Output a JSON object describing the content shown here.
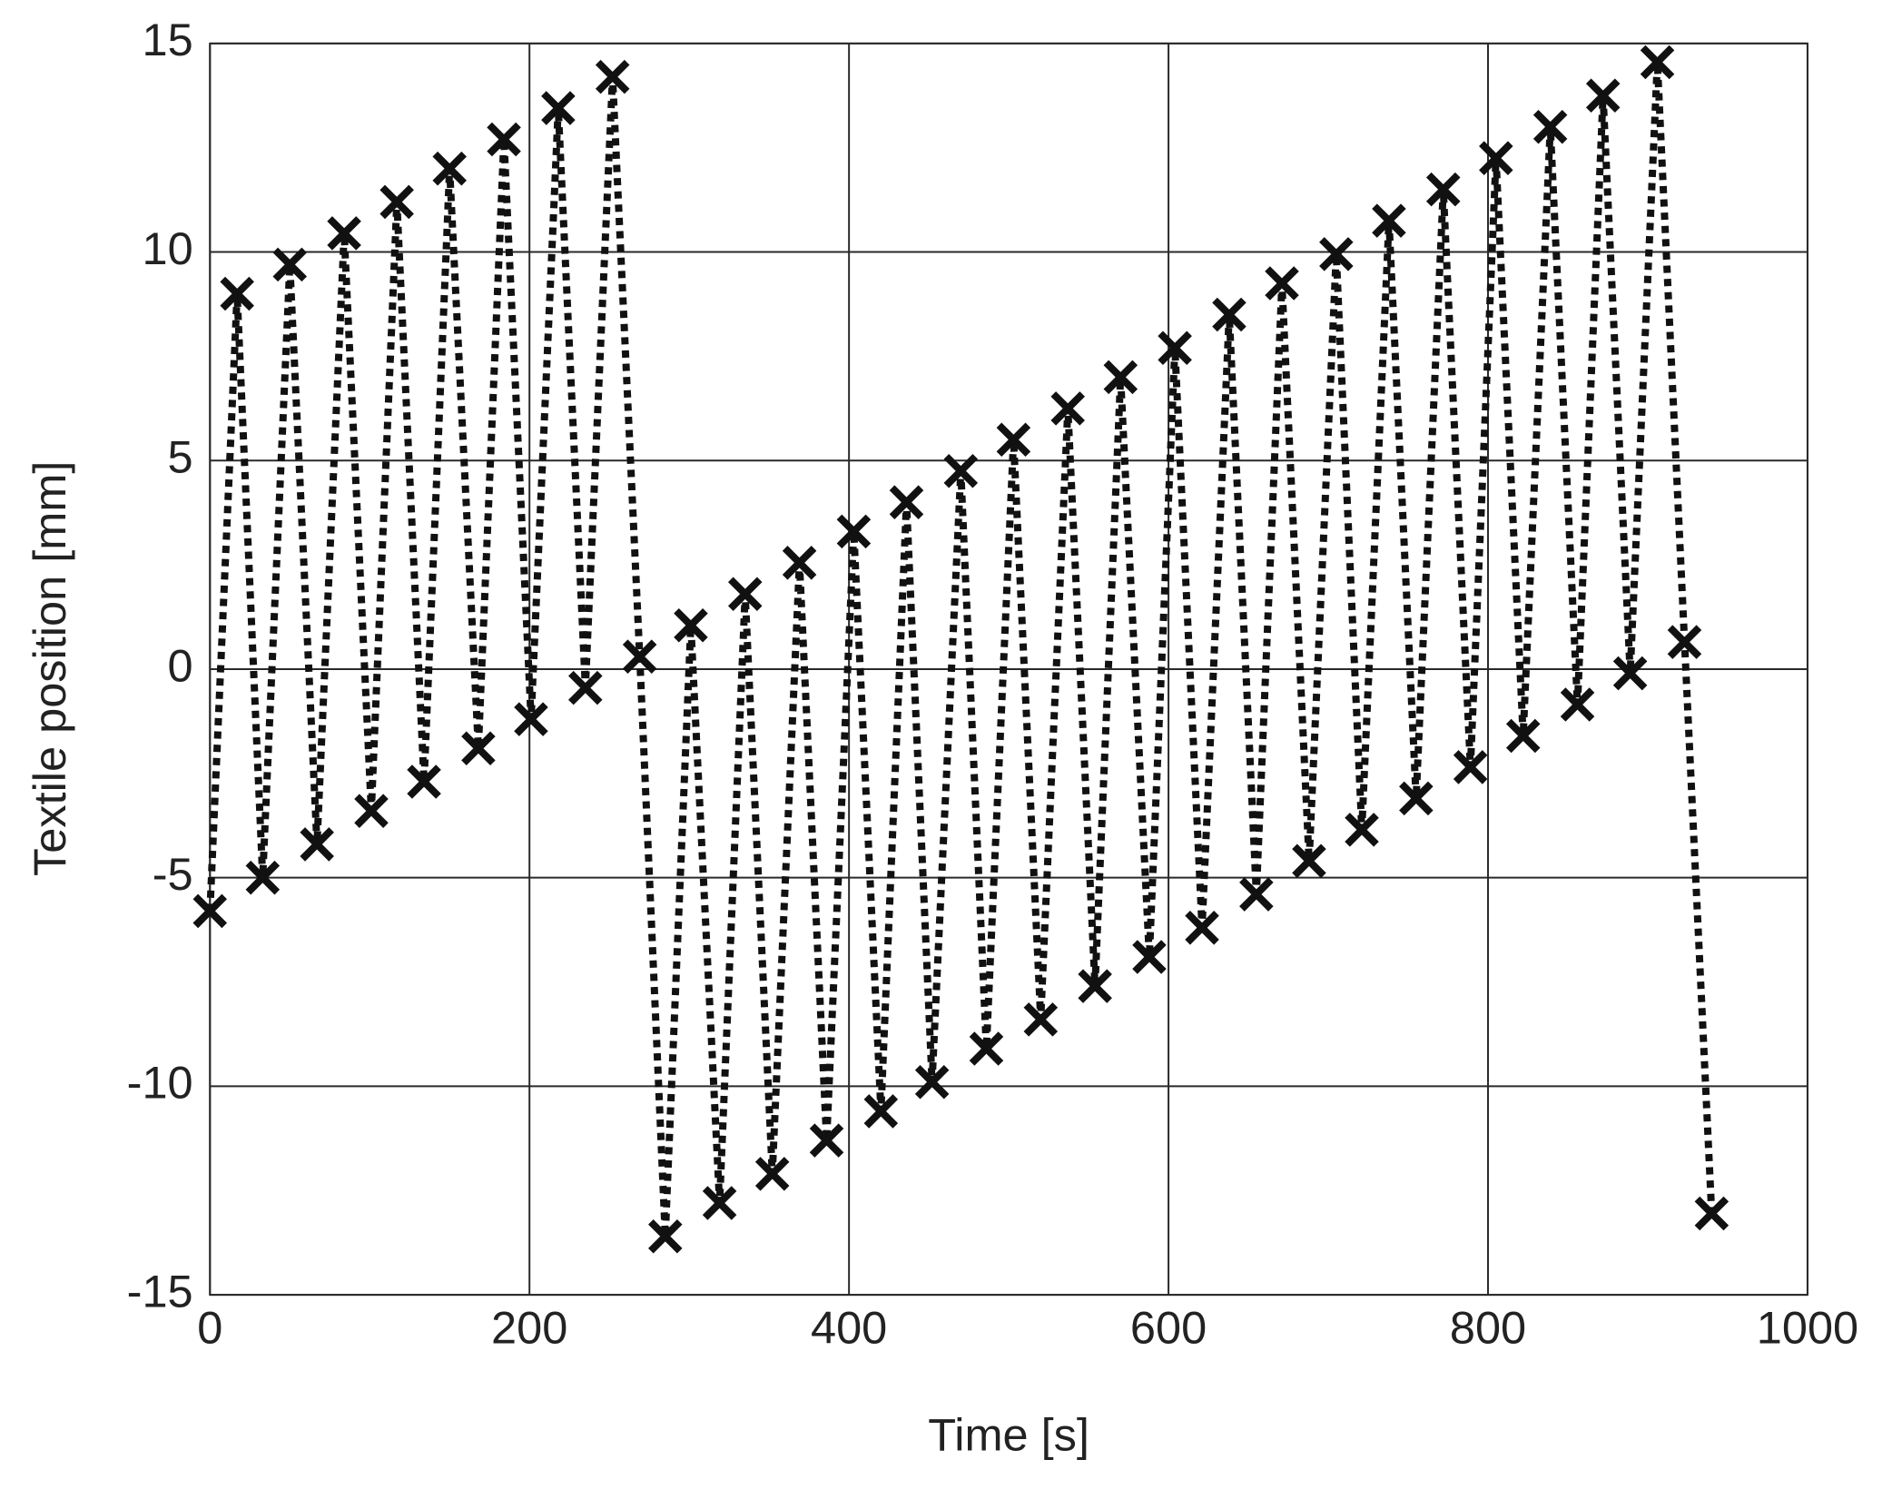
{
  "chart_data": {
    "type": "line",
    "x_label": "Time [s]",
    "y_label": "Textile position [mm]",
    "x": [
      0,
      17,
      33,
      50,
      67,
      84,
      101,
      117,
      134,
      150,
      168,
      184,
      201,
      218,
      235,
      252,
      269,
      285,
      301,
      319,
      335,
      352,
      369,
      386,
      403,
      420,
      436,
      452,
      470,
      486,
      503,
      520,
      537,
      554,
      570,
      588,
      604,
      621,
      638,
      655,
      671,
      688,
      705,
      721,
      738,
      755,
      772,
      789,
      805,
      822,
      839,
      856,
      872,
      889,
      906,
      923,
      940
    ],
    "series": [
      {
        "name": "Textile position",
        "color": "#111111",
        "marker": "x",
        "values": [
          -5.8,
          9.0,
          -5.0,
          9.7,
          -4.2,
          10.45,
          -3.4,
          11.2,
          -2.7,
          12.0,
          -1.9,
          12.7,
          -1.2,
          13.45,
          -0.45,
          14.2,
          0.3,
          -13.6,
          1.05,
          -12.8,
          1.8,
          -12.1,
          2.55,
          -11.3,
          3.3,
          -10.6,
          4.0,
          -9.9,
          4.75,
          -9.1,
          5.5,
          -8.4,
          6.25,
          -7.6,
          7.0,
          -6.9,
          7.7,
          -6.2,
          8.5,
          -5.4,
          9.25,
          -4.6,
          9.95,
          -3.85,
          10.75,
          -3.1,
          11.5,
          -2.35,
          12.25,
          -1.6,
          13.0,
          -0.85,
          13.75,
          -0.1,
          14.55,
          0.65,
          -13.05
        ]
      }
    ],
    "xlim": [
      0,
      1000
    ],
    "xticks": [
      0,
      200,
      400,
      600,
      800,
      1000
    ],
    "ylim": [
      -15,
      15
    ],
    "yticks": [
      -15,
      -10,
      -5,
      0,
      5,
      10,
      15
    ],
    "grid": true
  }
}
